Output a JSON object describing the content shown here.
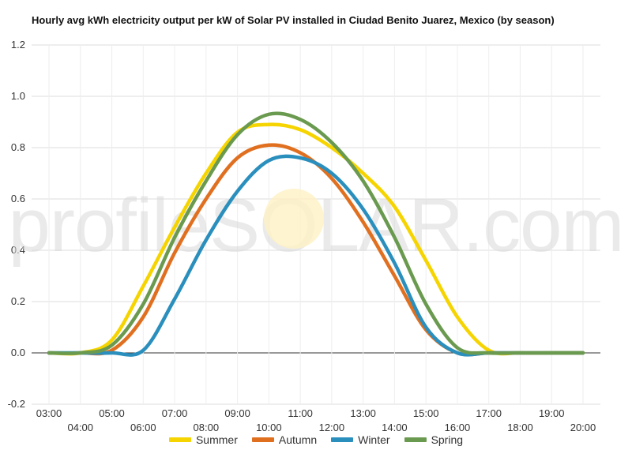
{
  "chart_data": {
    "type": "line",
    "title": "Hourly avg kWh electricity output per kW of Solar PV installed in Ciudad Benito Juarez, Mexico (by season)",
    "watermark": "profileSOLAR.com",
    "x_labels": [
      "03:00",
      "04:00",
      "05:00",
      "06:00",
      "07:00",
      "08:00",
      "09:00",
      "10:00",
      "11:00",
      "12:00",
      "13:00",
      "14:00",
      "15:00",
      "16:00",
      "17:00",
      "18:00",
      "19:00",
      "20:00"
    ],
    "x": [
      3,
      4,
      5,
      6,
      7,
      8,
      9,
      10,
      11,
      12,
      13,
      14,
      15,
      16,
      17,
      18,
      19,
      20
    ],
    "ylim": [
      -0.2,
      1.2
    ],
    "yticks": [
      "-0.2",
      "0.0",
      "0.2",
      "0.4",
      "0.6",
      "0.8",
      "1.0",
      "1.2"
    ],
    "grid": true,
    "legend_position": "bottom",
    "series": [
      {
        "name": "Summer",
        "color": "#f5d400",
        "values": [
          0,
          0,
          0.05,
          0.26,
          0.49,
          0.7,
          0.86,
          0.89,
          0.87,
          0.8,
          0.7,
          0.57,
          0.36,
          0.14,
          0.01,
          0,
          0,
          0
        ]
      },
      {
        "name": "Autumn",
        "color": "#e07020",
        "values": [
          0,
          0,
          0.01,
          0.14,
          0.39,
          0.6,
          0.76,
          0.81,
          0.78,
          0.68,
          0.51,
          0.3,
          0.09,
          0,
          0,
          0,
          0,
          0
        ]
      },
      {
        "name": "Winter",
        "color": "#2a8fbd",
        "values": [
          0,
          0,
          0,
          0.01,
          0.21,
          0.44,
          0.63,
          0.75,
          0.76,
          0.7,
          0.56,
          0.35,
          0.1,
          0,
          0,
          0,
          0,
          0
        ]
      },
      {
        "name": "Spring",
        "color": "#6a9a4f",
        "values": [
          0,
          0,
          0.03,
          0.19,
          0.45,
          0.67,
          0.85,
          0.93,
          0.91,
          0.82,
          0.67,
          0.45,
          0.19,
          0.02,
          0,
          0,
          0,
          0
        ]
      }
    ]
  }
}
